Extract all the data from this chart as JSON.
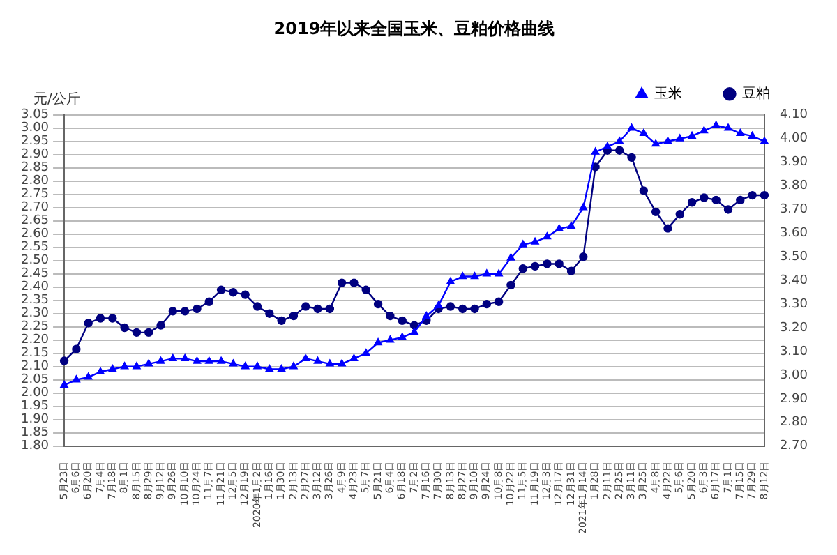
{
  "chart_data": {
    "type": "line",
    "title": "2019年以来全国玉米、豆粕价格曲线",
    "ylabel": "元/公斤",
    "categories": [
      "5月23日",
      "6月6日",
      "6月20日",
      "7月4日",
      "7月18日",
      "8月1日",
      "8月15日",
      "8月29日",
      "9月12日",
      "9月26日",
      "10月10日",
      "10月24日",
      "11月7日",
      "11月21日",
      "12月5日",
      "12月19日",
      "2020年1月2日",
      "1月16日",
      "1月30日",
      "2月13日",
      "2月27日",
      "3月12日",
      "3月26日",
      "4月9日",
      "4月23日",
      "5月7日",
      "5月21日",
      "6月4日",
      "6月18日",
      "7月2日",
      "7月16日",
      "7月30日",
      "8月13日",
      "8月27日",
      "9月10日",
      "9月24日",
      "10月8日",
      "10月22日",
      "11月5日",
      "11月19日",
      "12月3日",
      "12月17日",
      "12月31日",
      "2021年1月14日",
      "1月28日",
      "2月11日",
      "2月25日",
      "3月11日",
      "3月25日",
      "4月8日",
      "4月22日",
      "5月6日",
      "5月20日",
      "6月3日",
      "6月17日",
      "7月1日",
      "7月15日",
      "7月29日",
      "8月12日"
    ],
    "series": [
      {
        "name": "玉米",
        "color": "#0000ff",
        "marker": "triangle",
        "values": [
          2.03,
          2.05,
          2.06,
          2.08,
          2.09,
          2.1,
          2.1,
          2.11,
          2.12,
          2.13,
          2.13,
          2.12,
          2.12,
          2.12,
          2.11,
          2.1,
          2.1,
          2.09,
          2.09,
          2.1,
          2.13,
          2.12,
          2.11,
          2.11,
          2.13,
          2.15,
          2.19,
          2.2,
          2.21,
          2.23,
          2.29,
          2.33,
          2.42,
          2.44,
          2.44,
          2.45,
          2.45,
          2.51,
          2.56,
          2.57,
          2.59,
          2.62,
          2.63,
          2.7,
          2.91,
          2.93,
          2.95,
          3.0,
          2.98,
          2.94,
          2.95,
          2.96,
          2.97,
          2.99,
          3.01,
          3.0,
          2.98,
          2.97,
          2.95
        ]
      },
      {
        "name": "豆粕",
        "color": "#000080",
        "marker": "circle",
        "axis": "y2",
        "values": [
          3.06,
          3.11,
          3.22,
          3.24,
          3.24,
          3.2,
          3.18,
          3.18,
          3.21,
          3.27,
          3.27,
          3.28,
          3.31,
          3.36,
          3.35,
          3.34,
          3.29,
          3.26,
          3.23,
          3.25,
          3.29,
          3.28,
          3.28,
          3.39,
          3.39,
          3.36,
          3.3,
          3.25,
          3.23,
          3.21,
          3.23,
          3.28,
          3.29,
          3.28,
          3.28,
          3.3,
          3.31,
          3.38,
          3.45,
          3.46,
          3.47,
          3.47,
          3.44,
          3.5,
          3.88,
          3.95,
          3.95,
          3.92,
          3.78,
          3.69,
          3.62,
          3.68,
          3.73,
          3.75,
          3.74,
          3.7,
          3.74,
          3.76,
          3.76
        ]
      }
    ],
    "ylim": [
      1.8,
      3.05
    ],
    "yticks": [
      {
        "value": 1.8,
        "label": "1.80"
      },
      {
        "value": 1.85,
        "label": "1.85"
      },
      {
        "value": 1.9,
        "label": "1.90"
      },
      {
        "value": 1.95,
        "label": "1.95"
      },
      {
        "value": 2.0,
        "label": "2.00"
      },
      {
        "value": 2.05,
        "label": "2.05"
      },
      {
        "value": 2.1,
        "label": "2.10"
      },
      {
        "value": 2.15,
        "label": "2.15"
      },
      {
        "value": 2.2,
        "label": "2.20"
      },
      {
        "value": 2.25,
        "label": "2.25"
      },
      {
        "value": 2.3,
        "label": "2.30"
      },
      {
        "value": 2.35,
        "label": "2.35"
      },
      {
        "value": 2.4,
        "label": "2.40"
      },
      {
        "value": 2.45,
        "label": "2.45"
      },
      {
        "value": 2.5,
        "label": "2.50"
      },
      {
        "value": 2.55,
        "label": "2.55"
      },
      {
        "value": 2.6,
        "label": "2.60"
      },
      {
        "value": 2.65,
        "label": "2.65"
      },
      {
        "value": 2.7,
        "label": "2.70"
      },
      {
        "value": 2.75,
        "label": "2.75"
      },
      {
        "value": 2.8,
        "label": "2.80"
      },
      {
        "value": 2.85,
        "label": "2.85"
      },
      {
        "value": 2.9,
        "label": "2.90"
      },
      {
        "value": 2.95,
        "label": "2.95"
      },
      {
        "value": 3.0,
        "label": "3.00"
      },
      {
        "value": 3.05,
        "label": "3.05"
      }
    ],
    "y2lim": [
      2.7,
      4.1
    ],
    "y2ticks": [
      {
        "value": 2.7,
        "label": "2.70"
      },
      {
        "value": 2.8,
        "label": "2.80"
      },
      {
        "value": 2.9,
        "label": "2.90"
      },
      {
        "value": 3.0,
        "label": "3.00"
      },
      {
        "value": 3.1,
        "label": "3.10"
      },
      {
        "value": 3.2,
        "label": "3.20"
      },
      {
        "value": 3.3,
        "label": "3.30"
      },
      {
        "value": 3.4,
        "label": "3.40"
      },
      {
        "value": 3.5,
        "label": "3.50"
      },
      {
        "value": 3.6,
        "label": "3.60"
      },
      {
        "value": 3.7,
        "label": "3.70"
      },
      {
        "value": 3.8,
        "label": "3.80"
      },
      {
        "value": 3.9,
        "label": "3.90"
      },
      {
        "value": 4.0,
        "label": "4.00"
      },
      {
        "value": 4.1,
        "label": "4.10"
      }
    ],
    "grid": "y",
    "legend": "top right"
  }
}
